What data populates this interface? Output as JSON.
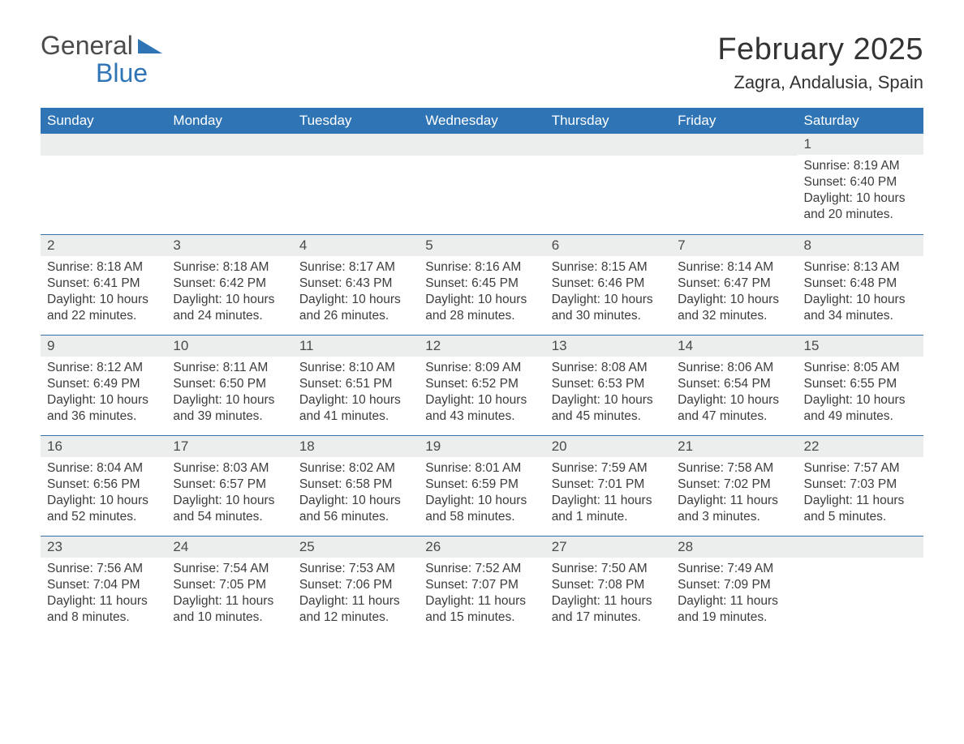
{
  "logo": {
    "word1": "General",
    "word2": "Blue"
  },
  "title": {
    "month": "February 2025",
    "location": "Zagra, Andalusia, Spain"
  },
  "colors": {
    "header_bg": "#2f74b5",
    "header_text": "#ffffff",
    "daynum_bg": "#eceded",
    "rule": "#3a6fa8",
    "body_text": "#3c3c3c",
    "logo_gray": "#4b4b4b",
    "logo_blue": "#2f74b5"
  },
  "day_headers": [
    "Sunday",
    "Monday",
    "Tuesday",
    "Wednesday",
    "Thursday",
    "Friday",
    "Saturday"
  ],
  "weeks": [
    [
      null,
      null,
      null,
      null,
      null,
      null,
      {
        "n": "1",
        "sr": "8:19 AM",
        "ss": "6:40 PM",
        "dl": "10 hours and 20 minutes."
      }
    ],
    [
      {
        "n": "2",
        "sr": "8:18 AM",
        "ss": "6:41 PM",
        "dl": "10 hours and 22 minutes."
      },
      {
        "n": "3",
        "sr": "8:18 AM",
        "ss": "6:42 PM",
        "dl": "10 hours and 24 minutes."
      },
      {
        "n": "4",
        "sr": "8:17 AM",
        "ss": "6:43 PM",
        "dl": "10 hours and 26 minutes."
      },
      {
        "n": "5",
        "sr": "8:16 AM",
        "ss": "6:45 PM",
        "dl": "10 hours and 28 minutes."
      },
      {
        "n": "6",
        "sr": "8:15 AM",
        "ss": "6:46 PM",
        "dl": "10 hours and 30 minutes."
      },
      {
        "n": "7",
        "sr": "8:14 AM",
        "ss": "6:47 PM",
        "dl": "10 hours and 32 minutes."
      },
      {
        "n": "8",
        "sr": "8:13 AM",
        "ss": "6:48 PM",
        "dl": "10 hours and 34 minutes."
      }
    ],
    [
      {
        "n": "9",
        "sr": "8:12 AM",
        "ss": "6:49 PM",
        "dl": "10 hours and 36 minutes."
      },
      {
        "n": "10",
        "sr": "8:11 AM",
        "ss": "6:50 PM",
        "dl": "10 hours and 39 minutes."
      },
      {
        "n": "11",
        "sr": "8:10 AM",
        "ss": "6:51 PM",
        "dl": "10 hours and 41 minutes."
      },
      {
        "n": "12",
        "sr": "8:09 AM",
        "ss": "6:52 PM",
        "dl": "10 hours and 43 minutes."
      },
      {
        "n": "13",
        "sr": "8:08 AM",
        "ss": "6:53 PM",
        "dl": "10 hours and 45 minutes."
      },
      {
        "n": "14",
        "sr": "8:06 AM",
        "ss": "6:54 PM",
        "dl": "10 hours and 47 minutes."
      },
      {
        "n": "15",
        "sr": "8:05 AM",
        "ss": "6:55 PM",
        "dl": "10 hours and 49 minutes."
      }
    ],
    [
      {
        "n": "16",
        "sr": "8:04 AM",
        "ss": "6:56 PM",
        "dl": "10 hours and 52 minutes."
      },
      {
        "n": "17",
        "sr": "8:03 AM",
        "ss": "6:57 PM",
        "dl": "10 hours and 54 minutes."
      },
      {
        "n": "18",
        "sr": "8:02 AM",
        "ss": "6:58 PM",
        "dl": "10 hours and 56 minutes."
      },
      {
        "n": "19",
        "sr": "8:01 AM",
        "ss": "6:59 PM",
        "dl": "10 hours and 58 minutes."
      },
      {
        "n": "20",
        "sr": "7:59 AM",
        "ss": "7:01 PM",
        "dl": "11 hours and 1 minute."
      },
      {
        "n": "21",
        "sr": "7:58 AM",
        "ss": "7:02 PM",
        "dl": "11 hours and 3 minutes."
      },
      {
        "n": "22",
        "sr": "7:57 AM",
        "ss": "7:03 PM",
        "dl": "11 hours and 5 minutes."
      }
    ],
    [
      {
        "n": "23",
        "sr": "7:56 AM",
        "ss": "7:04 PM",
        "dl": "11 hours and 8 minutes."
      },
      {
        "n": "24",
        "sr": "7:54 AM",
        "ss": "7:05 PM",
        "dl": "11 hours and 10 minutes."
      },
      {
        "n": "25",
        "sr": "7:53 AM",
        "ss": "7:06 PM",
        "dl": "11 hours and 12 minutes."
      },
      {
        "n": "26",
        "sr": "7:52 AM",
        "ss": "7:07 PM",
        "dl": "11 hours and 15 minutes."
      },
      {
        "n": "27",
        "sr": "7:50 AM",
        "ss": "7:08 PM",
        "dl": "11 hours and 17 minutes."
      },
      {
        "n": "28",
        "sr": "7:49 AM",
        "ss": "7:09 PM",
        "dl": "11 hours and 19 minutes."
      },
      null
    ]
  ],
  "labels": {
    "sunrise": "Sunrise:",
    "sunset": "Sunset:",
    "daylight": "Daylight:"
  }
}
